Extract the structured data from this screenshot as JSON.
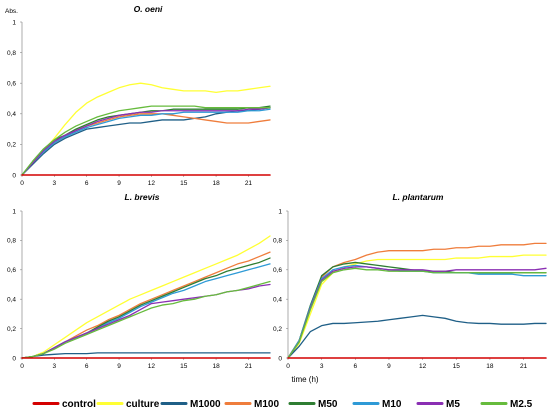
{
  "colors": {
    "control": "#d40000",
    "culture": "#ffff33",
    "M1000": "#1f5f87",
    "M100": "#ef7d3c",
    "M50": "#2e7d32",
    "M10": "#2e9ad6",
    "M5": "#8a2fb3",
    "M2.5": "#66bb3c"
  },
  "legend": {
    "items": [
      {
        "label": "control",
        "key": "control"
      },
      {
        "label": "culture",
        "key": "culture"
      },
      {
        "label": "M1000",
        "key": "M1000"
      },
      {
        "label": "M100",
        "key": "M100"
      },
      {
        "label": "M50",
        "key": "M50"
      },
      {
        "label": "M10",
        "key": "M10"
      },
      {
        "label": "M5",
        "key": "M5"
      },
      {
        "label": "M2.5",
        "key": "M2.5"
      }
    ]
  },
  "chart_data": [
    {
      "type": "line",
      "title": "O. oeni",
      "ylabel": "Abs.",
      "xlabel": "",
      "xlim": [
        0,
        23
      ],
      "ylim": [
        0,
        1
      ],
      "xticks": [
        "0",
        "3",
        "6",
        "9",
        "12",
        "15",
        "18",
        "21"
      ],
      "yticks": [
        "0",
        "0,2",
        "0,4",
        "0,6",
        "0,8",
        "1"
      ],
      "x": [
        0,
        1,
        2,
        3,
        4,
        5,
        6,
        7,
        8,
        9,
        10,
        11,
        12,
        13,
        14,
        15,
        16,
        17,
        18,
        19,
        20,
        21,
        22,
        23
      ],
      "series": [
        {
          "name": "control",
          "values": [
            0,
            0,
            0,
            0,
            0,
            0,
            0,
            0,
            0,
            0,
            0,
            0,
            0,
            0,
            0,
            0,
            0,
            0,
            0,
            0,
            0,
            0,
            0,
            0
          ]
        },
        {
          "name": "culture",
          "values": [
            0,
            0.08,
            0.16,
            0.24,
            0.33,
            0.41,
            0.47,
            0.51,
            0.54,
            0.57,
            0.59,
            0.6,
            0.59,
            0.57,
            0.56,
            0.55,
            0.55,
            0.55,
            0.54,
            0.55,
            0.55,
            0.56,
            0.57,
            0.58
          ]
        },
        {
          "name": "M1000",
          "values": [
            0,
            0.07,
            0.14,
            0.2,
            0.24,
            0.27,
            0.3,
            0.31,
            0.32,
            0.33,
            0.34,
            0.34,
            0.35,
            0.36,
            0.36,
            0.36,
            0.37,
            0.38,
            0.4,
            0.41,
            0.42,
            0.42,
            0.43,
            0.44
          ]
        },
        {
          "name": "M100",
          "values": [
            0,
            0.08,
            0.15,
            0.21,
            0.25,
            0.29,
            0.32,
            0.34,
            0.36,
            0.38,
            0.39,
            0.4,
            0.4,
            0.4,
            0.39,
            0.38,
            0.37,
            0.36,
            0.35,
            0.34,
            0.34,
            0.34,
            0.35,
            0.36
          ]
        },
        {
          "name": "M50",
          "values": [
            0,
            0.09,
            0.17,
            0.23,
            0.26,
            0.3,
            0.33,
            0.36,
            0.38,
            0.39,
            0.4,
            0.41,
            0.42,
            0.42,
            0.43,
            0.43,
            0.43,
            0.43,
            0.43,
            0.43,
            0.43,
            0.44,
            0.44,
            0.45
          ]
        },
        {
          "name": "M10",
          "values": [
            0,
            0.08,
            0.15,
            0.21,
            0.25,
            0.28,
            0.31,
            0.33,
            0.35,
            0.37,
            0.38,
            0.39,
            0.39,
            0.4,
            0.4,
            0.41,
            0.41,
            0.41,
            0.41,
            0.41,
            0.41,
            0.42,
            0.42,
            0.43
          ]
        },
        {
          "name": "M5",
          "values": [
            0,
            0.08,
            0.16,
            0.22,
            0.26,
            0.29,
            0.32,
            0.35,
            0.37,
            0.39,
            0.4,
            0.41,
            0.41,
            0.42,
            0.42,
            0.42,
            0.42,
            0.42,
            0.42,
            0.42,
            0.42,
            0.43,
            0.43,
            0.44
          ]
        },
        {
          "name": "M2.5",
          "values": [
            0,
            0.09,
            0.17,
            0.23,
            0.28,
            0.32,
            0.35,
            0.38,
            0.4,
            0.42,
            0.43,
            0.44,
            0.45,
            0.45,
            0.45,
            0.45,
            0.45,
            0.44,
            0.44,
            0.44,
            0.44,
            0.44,
            0.44,
            0.44
          ]
        }
      ]
    },
    {
      "type": "line",
      "title": "L. brevis",
      "xlabel": "",
      "ylabel": "",
      "xlim": [
        0,
        23
      ],
      "ylim": [
        0,
        1
      ],
      "xticks": [
        "0",
        "3",
        "6",
        "9",
        "12",
        "15",
        "18",
        "21"
      ],
      "yticks": [
        "0",
        "0,2",
        "0,4",
        "0,6",
        "0,8",
        "1"
      ],
      "x": [
        0,
        1,
        2,
        3,
        4,
        5,
        6,
        7,
        8,
        9,
        10,
        11,
        12,
        13,
        14,
        15,
        16,
        17,
        18,
        19,
        20,
        21,
        22,
        23
      ],
      "series": [
        {
          "name": "control",
          "values": [
            0,
            0,
            0,
            0,
            0,
            0,
            0,
            0,
            0,
            0,
            0,
            0,
            0,
            0,
            0,
            0,
            0,
            0,
            0,
            0,
            0,
            0,
            0,
            0
          ]
        },
        {
          "name": "culture",
          "values": [
            0,
            0.01,
            0.04,
            0.09,
            0.14,
            0.19,
            0.24,
            0.28,
            0.32,
            0.36,
            0.4,
            0.43,
            0.46,
            0.49,
            0.52,
            0.55,
            0.58,
            0.61,
            0.64,
            0.67,
            0.7,
            0.74,
            0.78,
            0.83
          ]
        },
        {
          "name": "M1000",
          "values": [
            0,
            0.01,
            0.02,
            0.025,
            0.03,
            0.03,
            0.03,
            0.035,
            0.035,
            0.035,
            0.035,
            0.035,
            0.035,
            0.035,
            0.035,
            0.035,
            0.035,
            0.035,
            0.035,
            0.035,
            0.035,
            0.035,
            0.035,
            0.035
          ]
        },
        {
          "name": "M100",
          "values": [
            0,
            0.01,
            0.03,
            0.07,
            0.11,
            0.15,
            0.19,
            0.22,
            0.26,
            0.29,
            0.33,
            0.37,
            0.4,
            0.43,
            0.46,
            0.49,
            0.52,
            0.55,
            0.58,
            0.61,
            0.64,
            0.66,
            0.69,
            0.72
          ]
        },
        {
          "name": "M50",
          "values": [
            0,
            0.01,
            0.03,
            0.07,
            0.11,
            0.14,
            0.17,
            0.21,
            0.25,
            0.28,
            0.32,
            0.36,
            0.39,
            0.42,
            0.45,
            0.48,
            0.51,
            0.54,
            0.56,
            0.59,
            0.61,
            0.63,
            0.65,
            0.68
          ]
        },
        {
          "name": "M10",
          "values": [
            0,
            0.01,
            0.03,
            0.07,
            0.11,
            0.14,
            0.17,
            0.2,
            0.24,
            0.27,
            0.31,
            0.35,
            0.38,
            0.41,
            0.44,
            0.46,
            0.49,
            0.52,
            0.54,
            0.56,
            0.58,
            0.6,
            0.62,
            0.64
          ]
        },
        {
          "name": "M5",
          "values": [
            0,
            0.01,
            0.03,
            0.07,
            0.11,
            0.14,
            0.17,
            0.2,
            0.23,
            0.26,
            0.29,
            0.33,
            0.37,
            0.38,
            0.39,
            0.4,
            0.41,
            0.42,
            0.43,
            0.45,
            0.46,
            0.47,
            0.49,
            0.5
          ]
        },
        {
          "name": "M2.5",
          "values": [
            0,
            0.01,
            0.03,
            0.06,
            0.1,
            0.13,
            0.16,
            0.19,
            0.22,
            0.25,
            0.28,
            0.31,
            0.34,
            0.36,
            0.37,
            0.39,
            0.4,
            0.42,
            0.43,
            0.45,
            0.46,
            0.48,
            0.5,
            0.52
          ]
        }
      ]
    },
    {
      "type": "line",
      "title": "L. plantarum",
      "xlabel": "time (h)",
      "ylabel": "",
      "xlim": [
        0,
        23
      ],
      "ylim": [
        0,
        1
      ],
      "xticks": [
        "0",
        "3",
        "6",
        "9",
        "12",
        "15",
        "18",
        "21"
      ],
      "yticks": [
        "0",
        "0,2",
        "0,4",
        "0,6",
        "0,8",
        "1"
      ],
      "x": [
        0,
        1,
        2,
        3,
        4,
        5,
        6,
        7,
        8,
        9,
        10,
        11,
        12,
        13,
        14,
        15,
        16,
        17,
        18,
        19,
        20,
        21,
        22,
        23
      ],
      "series": [
        {
          "name": "control",
          "values": [
            0,
            0,
            0,
            0,
            0,
            0,
            0,
            0,
            0,
            0,
            0,
            0,
            0,
            0,
            0,
            0,
            0,
            0,
            0,
            0,
            0,
            0,
            0,
            0
          ]
        },
        {
          "name": "culture",
          "values": [
            0,
            0.1,
            0.3,
            0.5,
            0.58,
            0.62,
            0.64,
            0.66,
            0.67,
            0.67,
            0.67,
            0.67,
            0.67,
            0.67,
            0.67,
            0.68,
            0.68,
            0.68,
            0.69,
            0.69,
            0.69,
            0.7,
            0.7,
            0.7
          ]
        },
        {
          "name": "M1000",
          "values": [
            0,
            0.08,
            0.18,
            0.22,
            0.235,
            0.235,
            0.24,
            0.245,
            0.25,
            0.26,
            0.27,
            0.28,
            0.29,
            0.28,
            0.27,
            0.25,
            0.24,
            0.235,
            0.235,
            0.23,
            0.23,
            0.23,
            0.235,
            0.235
          ]
        },
        {
          "name": "M100",
          "values": [
            0,
            0.12,
            0.35,
            0.55,
            0.62,
            0.65,
            0.67,
            0.7,
            0.72,
            0.73,
            0.73,
            0.73,
            0.73,
            0.74,
            0.74,
            0.75,
            0.75,
            0.76,
            0.76,
            0.77,
            0.77,
            0.77,
            0.78,
            0.78
          ]
        },
        {
          "name": "M50",
          "values": [
            0,
            0.12,
            0.36,
            0.56,
            0.62,
            0.64,
            0.65,
            0.64,
            0.63,
            0.62,
            0.61,
            0.6,
            0.59,
            0.59,
            0.59,
            0.58,
            0.58,
            0.58,
            0.58,
            0.58,
            0.58,
            0.58,
            0.58,
            0.58
          ]
        },
        {
          "name": "M10",
          "values": [
            0,
            0.12,
            0.35,
            0.54,
            0.6,
            0.62,
            0.63,
            0.62,
            0.61,
            0.6,
            0.59,
            0.59,
            0.59,
            0.58,
            0.58,
            0.58,
            0.58,
            0.57,
            0.57,
            0.57,
            0.57,
            0.56,
            0.56,
            0.56
          ]
        },
        {
          "name": "M5",
          "values": [
            0,
            0.11,
            0.34,
            0.53,
            0.59,
            0.61,
            0.62,
            0.62,
            0.61,
            0.6,
            0.6,
            0.6,
            0.6,
            0.59,
            0.59,
            0.6,
            0.6,
            0.6,
            0.6,
            0.6,
            0.6,
            0.6,
            0.6,
            0.61
          ]
        },
        {
          "name": "M2.5",
          "values": [
            0,
            0.11,
            0.33,
            0.52,
            0.58,
            0.6,
            0.61,
            0.6,
            0.6,
            0.59,
            0.59,
            0.59,
            0.59,
            0.58,
            0.58,
            0.58,
            0.58,
            0.58,
            0.58,
            0.58,
            0.58,
            0.58,
            0.58,
            0.58
          ]
        }
      ]
    }
  ]
}
